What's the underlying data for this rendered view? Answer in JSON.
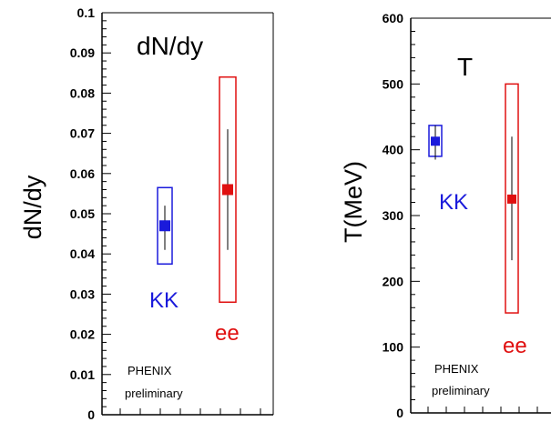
{
  "colors": {
    "kk": "#1a1adb",
    "ee": "#e01010",
    "axis": "#000000"
  },
  "chart_data": [
    {
      "type": "scatter",
      "title": "dN/dy",
      "ylabel": "dN/dy",
      "ylim": [
        0,
        0.1
      ],
      "yticks": [
        "0",
        "0.01",
        "0.02",
        "0.03",
        "0.04",
        "0.05",
        "0.06",
        "0.07",
        "0.08",
        "0.09",
        "0.1"
      ],
      "grid": false,
      "series": [
        {
          "name": "KK",
          "value": 0.047,
          "stat_err": [
            0.041,
            0.052
          ],
          "sys_err": [
            0.0375,
            0.0565
          ],
          "color": "#1a1adb"
        },
        {
          "name": "ee",
          "value": 0.056,
          "stat_err": [
            0.041,
            0.071
          ],
          "sys_err": [
            0.028,
            0.084
          ],
          "color": "#e01010"
        }
      ],
      "note": [
        "PHENIX",
        "preliminary"
      ]
    },
    {
      "type": "scatter",
      "title": "T",
      "ylabel": "T(MeV)",
      "ylim": [
        0,
        600
      ],
      "yticks": [
        "0",
        "100",
        "200",
        "300",
        "400",
        "500",
        "600"
      ],
      "grid": false,
      "series": [
        {
          "name": "KK",
          "value": 413,
          "stat_err": [
            385,
            437
          ],
          "sys_err": [
            390,
            437
          ],
          "color": "#1a1adb"
        },
        {
          "name": "ee",
          "value": 325,
          "stat_err": [
            232,
            420
          ],
          "sys_err": [
            152,
            500
          ],
          "color": "#e01010"
        }
      ],
      "note": [
        "PHENIX",
        "preliminary"
      ]
    }
  ]
}
